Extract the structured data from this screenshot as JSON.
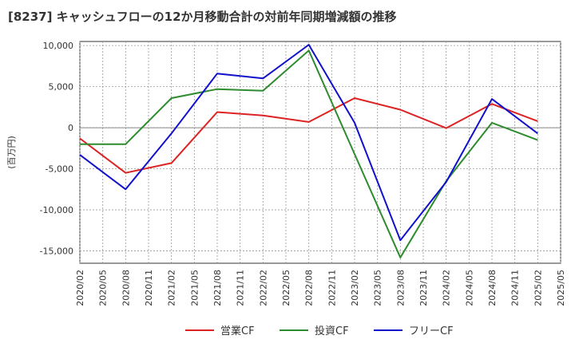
{
  "chart_data": {
    "type": "line",
    "title": "[8237]  キャッシュフローの12か月移動合計の対前年同期増減額の推移",
    "ylabel": "(百万円)",
    "xlabel": "",
    "ylim": [
      -16500,
      10500
    ],
    "yticks": [
      10000,
      5000,
      0,
      -5000,
      -10000,
      -15000
    ],
    "ytick_labels": [
      "10,000",
      "5,000",
      "0",
      "-5,000",
      "-10,000",
      "-15,000"
    ],
    "x": [
      "2020/02",
      "2020/05",
      "2020/08",
      "2020/11",
      "2021/02",
      "2021/05",
      "2021/08",
      "2021/11",
      "2022/02",
      "2022/05",
      "2022/08",
      "2022/11",
      "2023/02",
      "2023/05",
      "2023/08",
      "2023/11",
      "2024/02",
      "2024/05",
      "2024/08",
      "2024/11",
      "2025/02",
      "2025/05"
    ],
    "grid": true,
    "legend_position": "bottom",
    "series": [
      {
        "name": "営業CF",
        "color": "#dd2222",
        "points": [
          [
            "2020/02",
            -1300
          ],
          [
            "2020/08",
            -5500
          ],
          [
            "2021/02",
            -4300
          ],
          [
            "2021/08",
            1900
          ],
          [
            "2022/02",
            1500
          ],
          [
            "2022/08",
            700
          ],
          [
            "2023/02",
            3600
          ],
          [
            "2023/08",
            2200
          ],
          [
            "2024/02",
            -50
          ],
          [
            "2024/08",
            2900
          ],
          [
            "2025/02",
            800
          ]
        ]
      },
      {
        "name": "投資CF",
        "color": "#2e8b2e",
        "points": [
          [
            "2020/02",
            -2000
          ],
          [
            "2020/08",
            -2000
          ],
          [
            "2021/02",
            3600
          ],
          [
            "2021/08",
            4700
          ],
          [
            "2022/02",
            4500
          ],
          [
            "2022/08",
            9400
          ],
          [
            "2023/02",
            -3200
          ],
          [
            "2023/08",
            -15800
          ],
          [
            "2024/02",
            -6500
          ],
          [
            "2024/08",
            600
          ],
          [
            "2025/02",
            -1500
          ]
        ]
      },
      {
        "name": "フリーCF",
        "color": "#1111cc",
        "points": [
          [
            "2020/02",
            -3300
          ],
          [
            "2020/08",
            -7500
          ],
          [
            "2021/02",
            -700
          ],
          [
            "2021/08",
            6600
          ],
          [
            "2022/02",
            6000
          ],
          [
            "2022/08",
            10100
          ],
          [
            "2023/02",
            600
          ],
          [
            "2023/08",
            -13700
          ],
          [
            "2024/02",
            -6600
          ],
          [
            "2024/08",
            3500
          ],
          [
            "2025/02",
            -700
          ]
        ]
      }
    ]
  }
}
